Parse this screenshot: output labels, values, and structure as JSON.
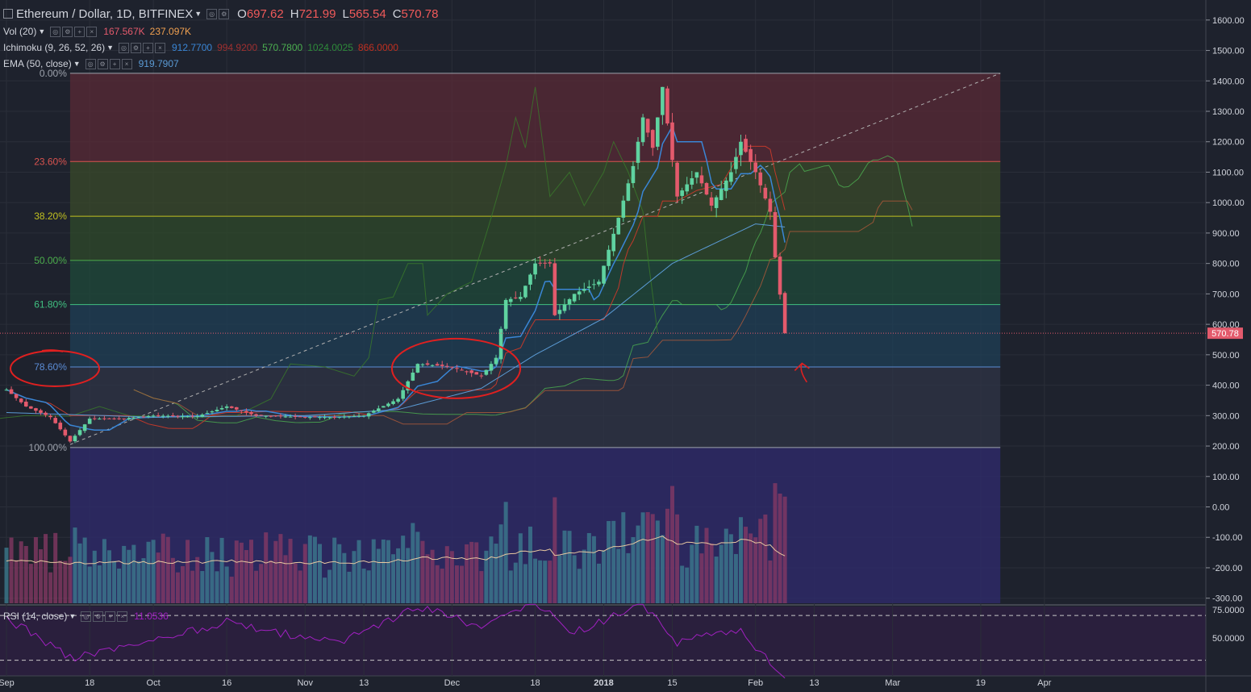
{
  "header": {
    "symbol": "Ethereum / Dollar, 1D, BITFINEX",
    "open_k": "O",
    "open_v": "697.62",
    "high_k": "H",
    "high_v": "721.99",
    "low_k": "L",
    "low_v": "565.54",
    "close_k": "C",
    "close_v": "570.78"
  },
  "indicators": {
    "vol": {
      "name": "Vol (20)",
      "v1": "167.567K",
      "v2": "237.097K"
    },
    "ichimoku": {
      "name": "Ichimoku (9, 26, 52, 26)",
      "v1": "912.7700",
      "v2": "994.9200",
      "v3": "570.7800",
      "v4": "1024.0025",
      "v5": "866.0000"
    },
    "ema": {
      "name": "EMA (50, close)",
      "v1": "919.7907"
    },
    "rsi": {
      "name": "RSI (14, close)",
      "v1": "11.0536"
    }
  },
  "price_axis": [
    "1600.00",
    "1500.00",
    "1400.00",
    "1300.00",
    "1200.00",
    "1100.00",
    "1000.00",
    "900.00",
    "800.00",
    "700.00",
    "600.00",
    "500.00",
    "400.00",
    "300.00",
    "200.00",
    "100.00",
    "0.00",
    "-100.00",
    "-200.00",
    "-300.00"
  ],
  "rsi_axis": [
    "75.0000",
    "50.0000"
  ],
  "last_price_tag": "570.78",
  "time_axis": [
    "Sep",
    "18",
    "Oct",
    "16",
    "Nov",
    "13",
    "Dec",
    "18",
    "2018",
    "15",
    "Feb",
    "13",
    "Mar",
    "19",
    "Apr"
  ],
  "colors": {
    "background": "#1e222d",
    "grid": "#2a2e39",
    "up": "#5fd3a0",
    "down": "#e35a6c",
    "ema": "#5b9bd5",
    "tenkan": "#3a86d6",
    "kijun": "#c0392b",
    "span_a": "#4caf50",
    "span_b": "#b05a3a",
    "rsi": "#a020c0",
    "annotation": "#e02020"
  },
  "chart_data": {
    "type": "candlestick",
    "title": "Ethereum / Dollar, 1D, BITFINEX",
    "ylim": [
      -310,
      1620
    ],
    "x_range": [
      "2017-09-01",
      "2018-04-08"
    ],
    "last": {
      "open": 697.62,
      "high": 721.99,
      "low": 565.54,
      "close": 570.78
    },
    "fibonacci": {
      "from": {
        "date": "2017-09-14",
        "price": 195
      },
      "to": {
        "date": "2018-03-23",
        "price": 1425
      },
      "levels": [
        {
          "label": "0.00%",
          "ratio": 0.0,
          "price": 1425,
          "color": "#9ea3ad"
        },
        {
          "label": "23.60%",
          "ratio": 0.236,
          "price": 1135,
          "color": "#d9534f"
        },
        {
          "label": "38.20%",
          "ratio": 0.382,
          "price": 955,
          "color": "#c0c020"
        },
        {
          "label": "50.00%",
          "ratio": 0.5,
          "price": 810,
          "color": "#4cae4c"
        },
        {
          "label": "61.80%",
          "ratio": 0.618,
          "price": 665,
          "color": "#40c080"
        },
        {
          "label": "78.60%",
          "ratio": 0.786,
          "price": 460,
          "color": "#5b8cd5"
        },
        {
          "label": "100.00%",
          "ratio": 1.0,
          "price": 195,
          "color": "#9ea3ad"
        }
      ]
    },
    "trendline": {
      "from": {
        "date": "2017-09-14",
        "price": 205
      },
      "to": {
        "date": "2018-03-23",
        "price": 1425
      }
    },
    "price_points": [
      {
        "date": "2017-09-01",
        "price": 385
      },
      {
        "date": "2017-09-05",
        "price": 330
      },
      {
        "date": "2017-09-10",
        "price": 295
      },
      {
        "date": "2017-09-14",
        "price": 215
      },
      {
        "date": "2017-09-18",
        "price": 290
      },
      {
        "date": "2017-09-25",
        "price": 290
      },
      {
        "date": "2017-10-01",
        "price": 300
      },
      {
        "date": "2017-10-10",
        "price": 298
      },
      {
        "date": "2017-10-16",
        "price": 330
      },
      {
        "date": "2017-10-22",
        "price": 300
      },
      {
        "date": "2017-11-01",
        "price": 295
      },
      {
        "date": "2017-11-07",
        "price": 295
      },
      {
        "date": "2017-11-13",
        "price": 300
      },
      {
        "date": "2017-11-20",
        "price": 355
      },
      {
        "date": "2017-11-24",
        "price": 470
      },
      {
        "date": "2017-12-01",
        "price": 460
      },
      {
        "date": "2017-12-07",
        "price": 430
      },
      {
        "date": "2017-12-10",
        "price": 490
      },
      {
        "date": "2017-12-12",
        "price": 680
      },
      {
        "date": "2017-12-15",
        "price": 690
      },
      {
        "date": "2017-12-18",
        "price": 800
      },
      {
        "date": "2017-12-21",
        "price": 800
      },
      {
        "date": "2017-12-22",
        "price": 630
      },
      {
        "date": "2017-12-26",
        "price": 700
      },
      {
        "date": "2017-12-31",
        "price": 740
      },
      {
        "date": "2018-01-04",
        "price": 950
      },
      {
        "date": "2018-01-07",
        "price": 1120
      },
      {
        "date": "2018-01-09",
        "price": 1280
      },
      {
        "date": "2018-01-11",
        "price": 1180
      },
      {
        "date": "2018-01-13",
        "price": 1380
      },
      {
        "date": "2018-01-16",
        "price": 1020
      },
      {
        "date": "2018-01-20",
        "price": 1100
      },
      {
        "date": "2018-01-23",
        "price": 990
      },
      {
        "date": "2018-01-27",
        "price": 1100
      },
      {
        "date": "2018-01-29",
        "price": 1200
      },
      {
        "date": "2018-02-01",
        "price": 1100
      },
      {
        "date": "2018-02-04",
        "price": 970
      },
      {
        "date": "2018-02-05",
        "price": 820
      },
      {
        "date": "2018-02-06",
        "price": 697.62
      },
      {
        "date": "2018-02-07",
        "price": 570.78
      }
    ],
    "ema_points": [
      {
        "date": "2017-09-01",
        "price": 310
      },
      {
        "date": "2017-10-01",
        "price": 295
      },
      {
        "date": "2017-11-01",
        "price": 300
      },
      {
        "date": "2017-11-20",
        "price": 320
      },
      {
        "date": "2017-12-07",
        "price": 390
      },
      {
        "date": "2017-12-18",
        "price": 500
      },
      {
        "date": "2018-01-01",
        "price": 620
      },
      {
        "date": "2018-01-15",
        "price": 800
      },
      {
        "date": "2018-02-01",
        "price": 930
      },
      {
        "date": "2018-02-07",
        "price": 919.79
      }
    ],
    "annotations": [
      {
        "type": "ellipse",
        "around": "78.60% level label"
      },
      {
        "type": "ellipse",
        "around": "late Nov - early Dec consolidation"
      },
      {
        "type": "arrow",
        "near": "2018-02-10",
        "direction": "up"
      }
    ],
    "volume_indicator": {
      "name": "Vol (20)",
      "ma": "237.097K",
      "last": "167.567K"
    },
    "rsi_indicator": {
      "name": "RSI (14, close)",
      "last": 11.0536,
      "levels": [
        70,
        30
      ],
      "axis_ticks": [
        75,
        50
      ],
      "points": [
        {
          "date": "2017-09-01",
          "value": 68
        },
        {
          "date": "2017-09-14",
          "value": 32
        },
        {
          "date": "2017-10-16",
          "value": 64
        },
        {
          "date": "2017-11-07",
          "value": 45
        },
        {
          "date": "2017-11-24",
          "value": 78
        },
        {
          "date": "2017-12-07",
          "value": 60
        },
        {
          "date": "2017-12-18",
          "value": 80
        },
        {
          "date": "2017-12-26",
          "value": 55
        },
        {
          "date": "2018-01-09",
          "value": 80
        },
        {
          "date": "2018-01-16",
          "value": 45
        },
        {
          "date": "2018-01-29",
          "value": 58
        },
        {
          "date": "2018-02-07",
          "value": 11.05
        }
      ]
    }
  }
}
